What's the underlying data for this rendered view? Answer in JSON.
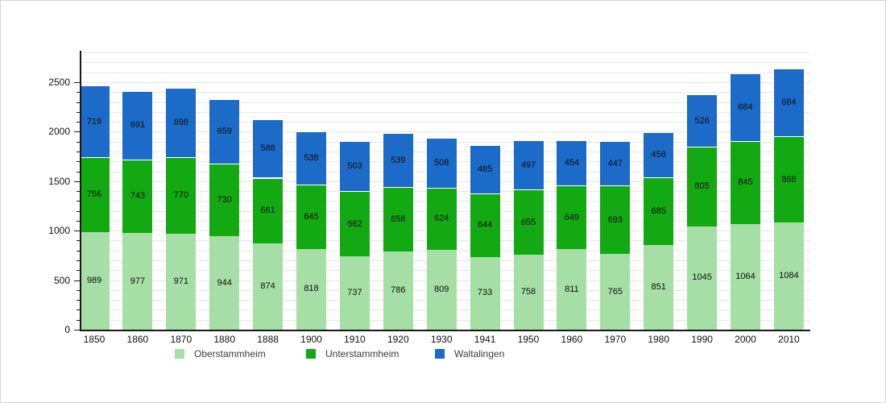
{
  "chart_data": {
    "type": "bar",
    "stacked": true,
    "title": "",
    "xlabel": "",
    "ylabel": "",
    "categories": [
      "1850",
      "1860",
      "1870",
      "1880",
      "1888",
      "1900",
      "1910",
      "1920",
      "1930",
      "1941",
      "1950",
      "1960",
      "1970",
      "1980",
      "1990",
      "2000",
      "2010"
    ],
    "series": [
      {
        "name": "Oberstammheim",
        "color": "#a6dfa6",
        "values": [
          989,
          977,
          971,
          944,
          874,
          818,
          737,
          786,
          809,
          733,
          758,
          811,
          765,
          851,
          1045,
          1064,
          1084
        ]
      },
      {
        "name": "Unterstammheim",
        "color": "#13a913",
        "values": [
          756,
          743,
          770,
          730,
          661,
          645,
          662,
          658,
          624,
          644,
          655,
          649,
          693,
          685,
          805,
          845,
          868
        ]
      },
      {
        "name": "Waltalingen",
        "color": "#1c6bc8",
        "values": [
          719,
          691,
          698,
          659,
          588,
          538,
          503,
          539,
          508,
          485,
          497,
          454,
          447,
          458,
          526,
          684,
          684
        ]
      }
    ],
    "yticks": [
      0,
      500,
      1000,
      1500,
      2000,
      2500
    ],
    "ylim": [
      0,
      2800
    ],
    "minor_grid_step": 100,
    "grid": "horizontal",
    "legend_position": "bottom",
    "value_labels": "centered inside each segment"
  }
}
